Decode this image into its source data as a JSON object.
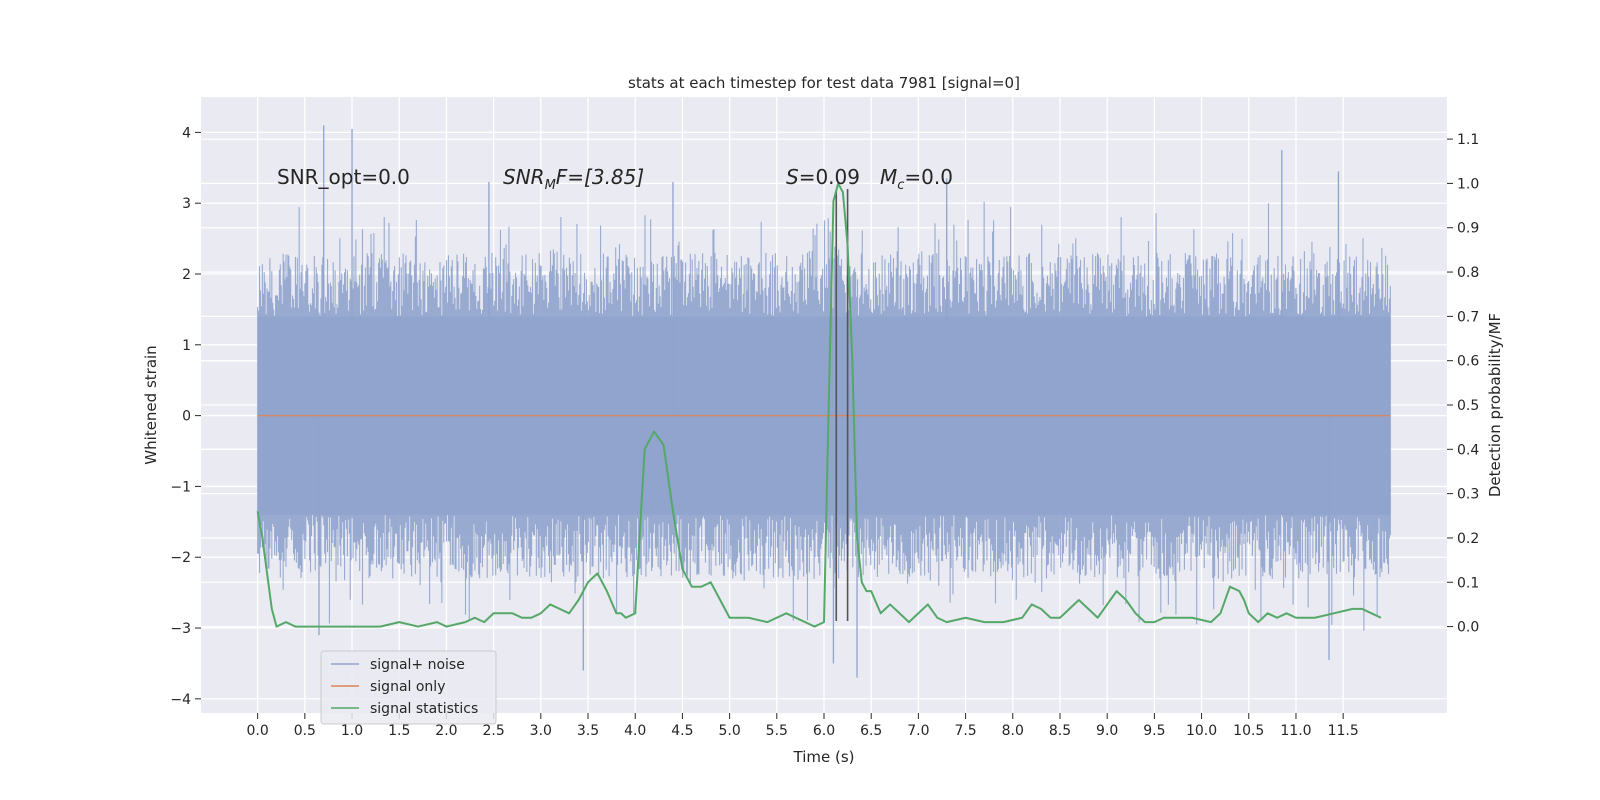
{
  "chart_data": {
    "type": "line",
    "title": "stats at each timestep for test data 7981 [signal=0]",
    "xlabel": "Time (s)",
    "ylabel": "Whitened strain",
    "y2label": "Detection probability/MF",
    "xlim": [
      -0.6,
      12.6
    ],
    "ylim": [
      -4.2,
      4.5
    ],
    "y2lim": [
      -0.195,
      1.195
    ],
    "xticks": [
      0.0,
      0.5,
      1.0,
      1.5,
      2.0,
      2.5,
      3.0,
      3.5,
      4.0,
      4.5,
      5.0,
      5.5,
      6.0,
      6.5,
      7.0,
      7.5,
      8.0,
      8.5,
      9.0,
      9.5,
      10.0,
      10.5,
      11.0,
      11.5
    ],
    "xtick_labels": [
      "0.0",
      "0.5",
      "1.0",
      "1.5",
      "2.0",
      "2.5",
      "3.0",
      "3.5",
      "4.0",
      "4.5",
      "5.0",
      "5.5",
      "6.0",
      "6.5",
      "7.0",
      "7.5",
      "8.0",
      "8.5",
      "9.0",
      "9.5",
      "10.0",
      "10.5",
      "11.0",
      "11.5"
    ],
    "yticks": [
      -4,
      -3,
      -2,
      -1,
      0,
      1,
      2,
      3,
      4
    ],
    "ytick_labels": [
      "−4",
      "−3",
      "−2",
      "−1",
      "0",
      "1",
      "2",
      "3",
      "4"
    ],
    "y2ticks": [
      0.0,
      0.1,
      0.2,
      0.3,
      0.4,
      0.5,
      0.6,
      0.7,
      0.8,
      0.9,
      1.0,
      1.1
    ],
    "y2tick_labels": [
      "0.0",
      "0.1",
      "0.2",
      "0.3",
      "0.4",
      "0.5",
      "0.6",
      "0.7",
      "0.8",
      "0.9",
      "1.0",
      "1.1"
    ],
    "grid": true,
    "legend_position": "lower-left",
    "annotations": {
      "snr_opt": "SNR_opt=0.0",
      "snr_mf": {
        "main": "SNR",
        "sub": "M",
        "rest": "F=[3.85]"
      },
      "s_value": {
        "main": "S",
        "rest": "=0.09"
      },
      "mc_value": {
        "main": "M",
        "sub": "c",
        "rest": "=0.0"
      }
    },
    "series": [
      {
        "name": "signal+ noise",
        "color": "#8fa3cc",
        "axis": "left",
        "kind": "noise",
        "x_range": [
          0.0,
          12.0
        ],
        "envelope_max": 4.1,
        "envelope_min": -3.7,
        "peaks": [
          {
            "x": 0.7,
            "y": 4.1
          },
          {
            "x": 1.0,
            "y": 4.05
          },
          {
            "x": 10.85,
            "y": 3.75
          },
          {
            "x": 11.45,
            "y": 3.45
          },
          {
            "x": 4.4,
            "y": 3.3
          },
          {
            "x": 2.45,
            "y": 3.3
          },
          {
            "x": 7.3,
            "y": 3.35
          },
          {
            "x": 6.35,
            "y": -3.7
          },
          {
            "x": 3.45,
            "y": -3.6
          },
          {
            "x": 11.35,
            "y": -3.45
          },
          {
            "x": 6.1,
            "y": -3.5
          },
          {
            "x": 0.65,
            "y": -3.1
          }
        ]
      },
      {
        "name": "signal only",
        "color": "#dd8452",
        "axis": "left",
        "x": [
          0.0,
          12.0
        ],
        "y": [
          0.0,
          0.0
        ]
      },
      {
        "name": "signal statistics",
        "color": "#55a868",
        "axis": "right",
        "x": [
          0.0,
          0.05,
          0.1,
          0.15,
          0.2,
          0.3,
          0.4,
          0.5,
          0.7,
          1.0,
          1.3,
          1.5,
          1.7,
          1.9,
          2.0,
          2.2,
          2.3,
          2.4,
          2.5,
          2.6,
          2.7,
          2.8,
          2.9,
          3.0,
          3.1,
          3.2,
          3.3,
          3.4,
          3.5,
          3.6,
          3.7,
          3.8,
          3.85,
          3.9,
          4.0,
          4.1,
          4.2,
          4.3,
          4.4,
          4.5,
          4.6,
          4.7,
          4.8,
          5.0,
          5.2,
          5.4,
          5.6,
          5.8,
          5.9,
          6.0,
          6.05,
          6.1,
          6.15,
          6.2,
          6.25,
          6.3,
          6.35,
          6.4,
          6.45,
          6.5,
          6.6,
          6.7,
          6.8,
          6.9,
          7.0,
          7.1,
          7.2,
          7.3,
          7.5,
          7.7,
          7.9,
          8.1,
          8.2,
          8.3,
          8.4,
          8.5,
          8.6,
          8.7,
          8.8,
          8.9,
          9.0,
          9.1,
          9.2,
          9.3,
          9.4,
          9.5,
          9.6,
          9.7,
          9.9,
          10.1,
          10.2,
          10.3,
          10.4,
          10.45,
          10.5,
          10.6,
          10.7,
          10.8,
          10.9,
          11.0,
          11.1,
          11.2,
          11.4,
          11.6,
          11.7,
          11.8,
          11.9
        ],
        "y": [
          0.26,
          0.2,
          0.12,
          0.04,
          0.0,
          0.01,
          0.0,
          0.0,
          0.0,
          0.0,
          0.0,
          0.01,
          0.0,
          0.01,
          0.0,
          0.01,
          0.02,
          0.01,
          0.03,
          0.03,
          0.03,
          0.02,
          0.02,
          0.03,
          0.05,
          0.04,
          0.03,
          0.06,
          0.1,
          0.12,
          0.08,
          0.03,
          0.03,
          0.02,
          0.03,
          0.4,
          0.44,
          0.41,
          0.26,
          0.13,
          0.09,
          0.09,
          0.1,
          0.02,
          0.02,
          0.01,
          0.03,
          0.01,
          0.0,
          0.01,
          0.5,
          0.96,
          1.0,
          0.98,
          0.86,
          0.6,
          0.2,
          0.1,
          0.08,
          0.08,
          0.03,
          0.05,
          0.03,
          0.01,
          0.03,
          0.05,
          0.02,
          0.01,
          0.02,
          0.01,
          0.01,
          0.02,
          0.05,
          0.04,
          0.02,
          0.02,
          0.04,
          0.06,
          0.04,
          0.02,
          0.05,
          0.08,
          0.06,
          0.03,
          0.01,
          0.01,
          0.02,
          0.02,
          0.02,
          0.01,
          0.03,
          0.09,
          0.08,
          0.06,
          0.03,
          0.01,
          0.03,
          0.02,
          0.03,
          0.02,
          0.02,
          0.02,
          0.03,
          0.04,
          0.04,
          0.03,
          0.02
        ]
      }
    ],
    "vertical_lines": [
      {
        "x": 6.13,
        "y_top": 3.2,
        "y_bottom": -2.9,
        "color": "#555555"
      },
      {
        "x": 6.25,
        "y_top": 3.2,
        "y_bottom": -2.9,
        "color": "#555555"
      }
    ]
  }
}
